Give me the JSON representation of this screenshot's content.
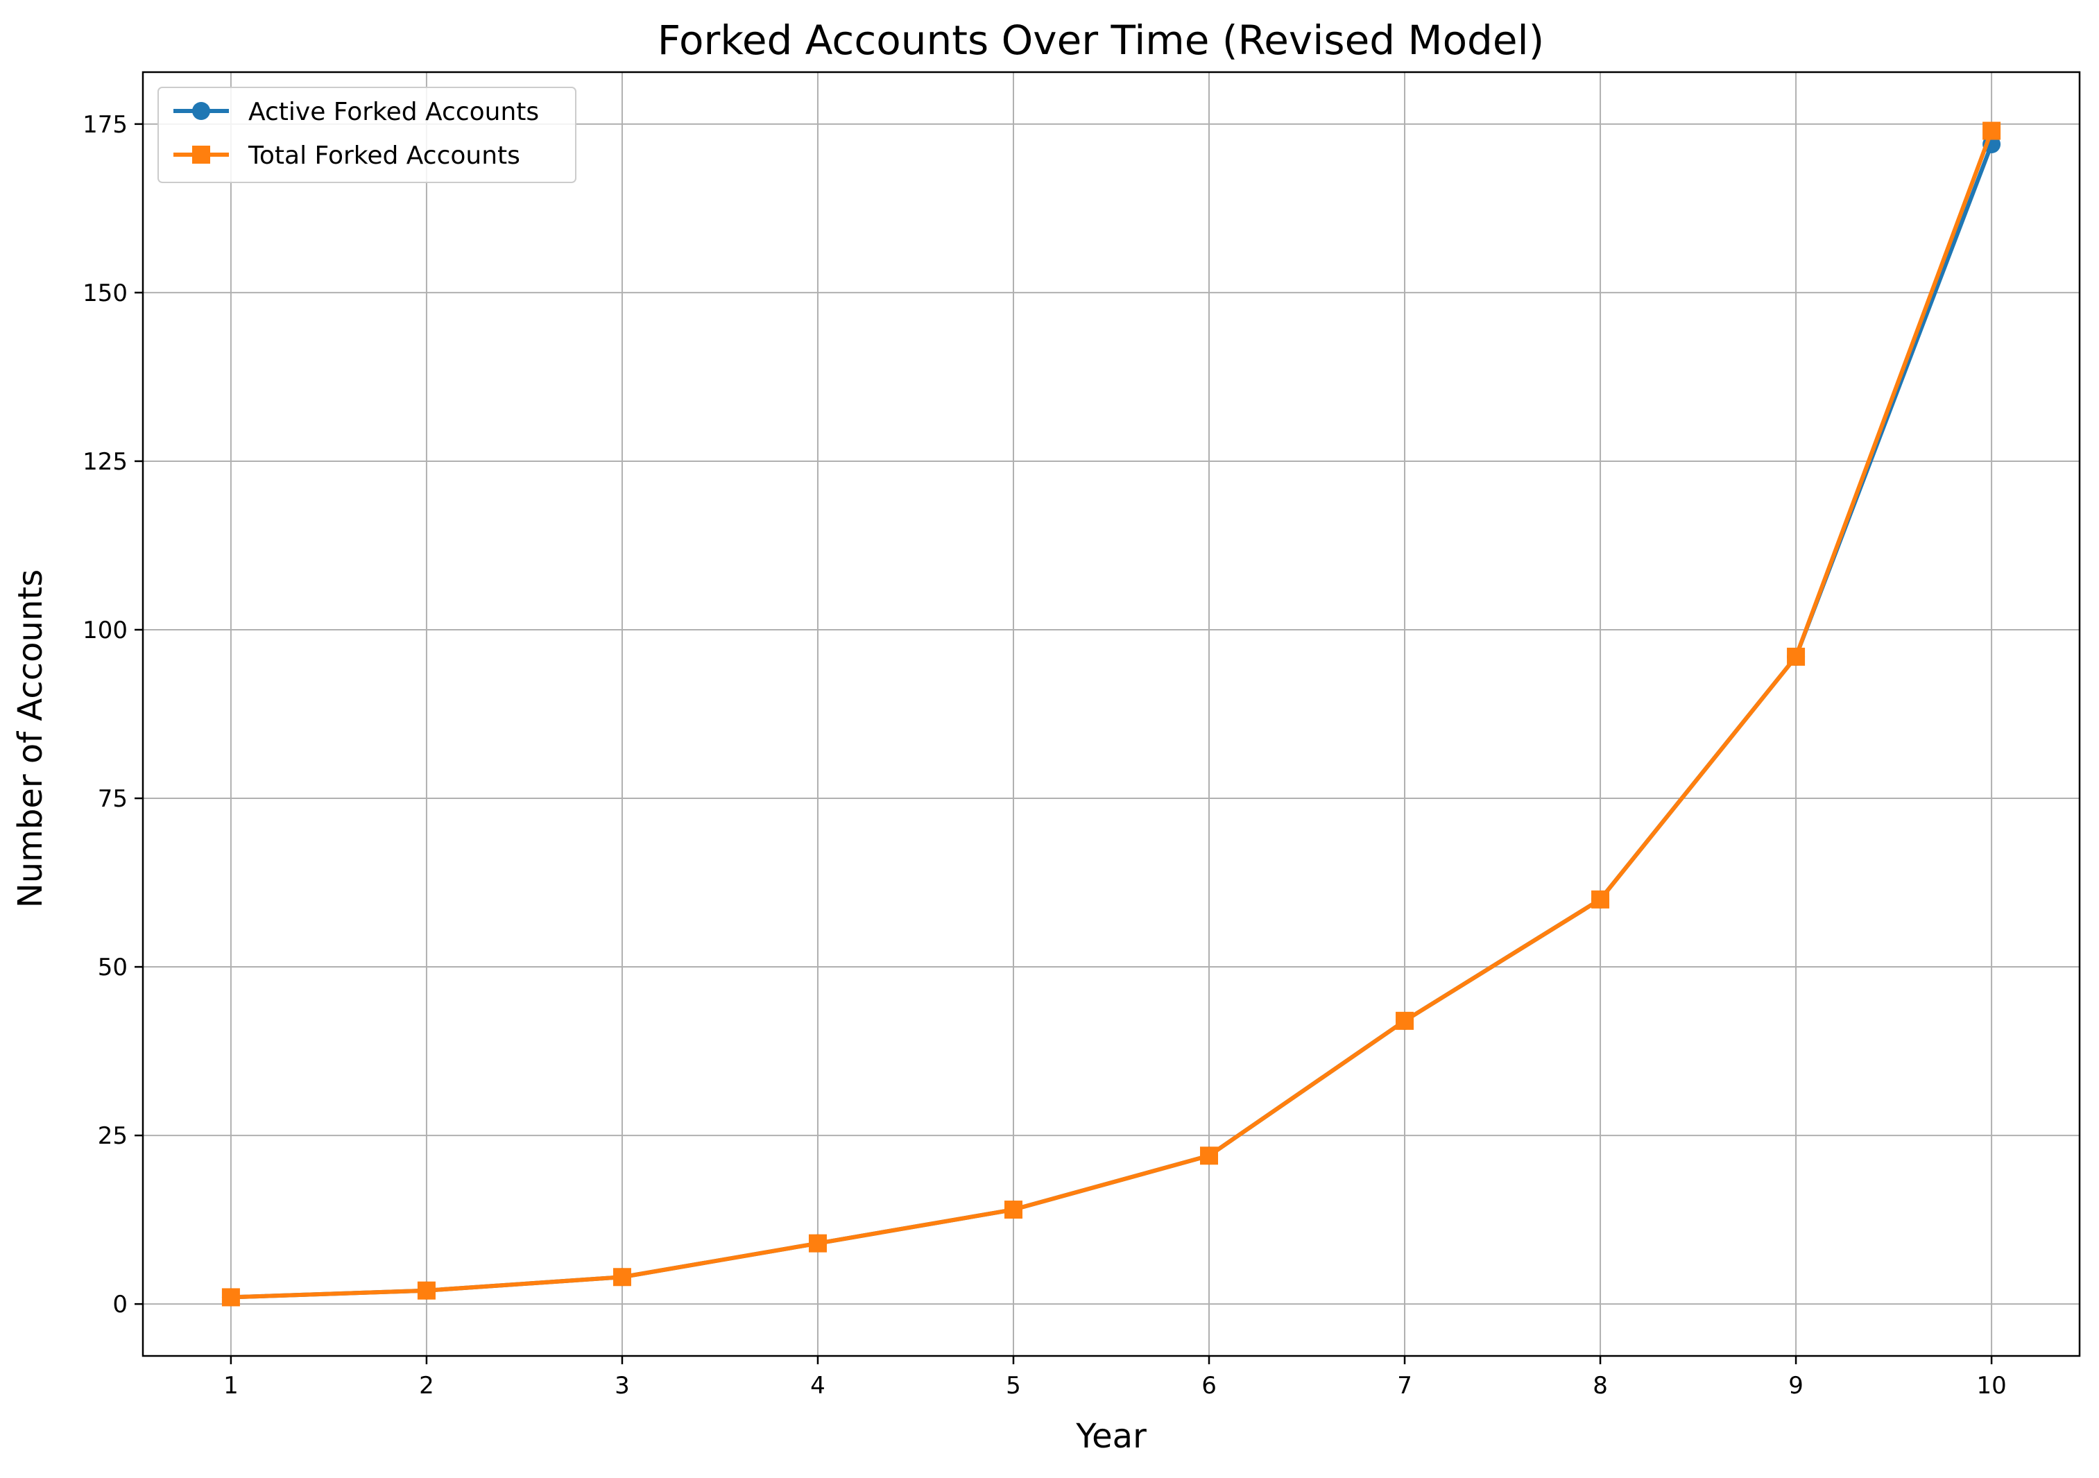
{
  "chart_data": {
    "type": "line",
    "title": "Forked Accounts Over Time (Revised Model)",
    "xlabel": "Year",
    "ylabel": "Number of Accounts",
    "x": [
      1,
      2,
      3,
      4,
      5,
      6,
      7,
      8,
      9,
      10
    ],
    "xlim": [
      0.55,
      10.45
    ],
    "ylim": [
      -7.7,
      182.7
    ],
    "xticks": [
      1,
      2,
      3,
      4,
      5,
      6,
      7,
      8,
      9,
      10
    ],
    "yticks": [
      0,
      25,
      50,
      75,
      100,
      125,
      150,
      175
    ],
    "grid": true,
    "legend_position": "top-left",
    "series": [
      {
        "name": "Active Forked Accounts",
        "values": [
          1,
          2,
          4,
          9,
          14,
          22,
          42,
          60,
          96,
          172
        ],
        "color": "#1f77b4",
        "marker": "circle"
      },
      {
        "name": "Total Forked Accounts",
        "values": [
          1,
          2,
          4,
          9,
          14,
          22,
          42,
          60,
          96,
          174
        ],
        "color": "#ff7f0e",
        "marker": "square"
      }
    ]
  }
}
